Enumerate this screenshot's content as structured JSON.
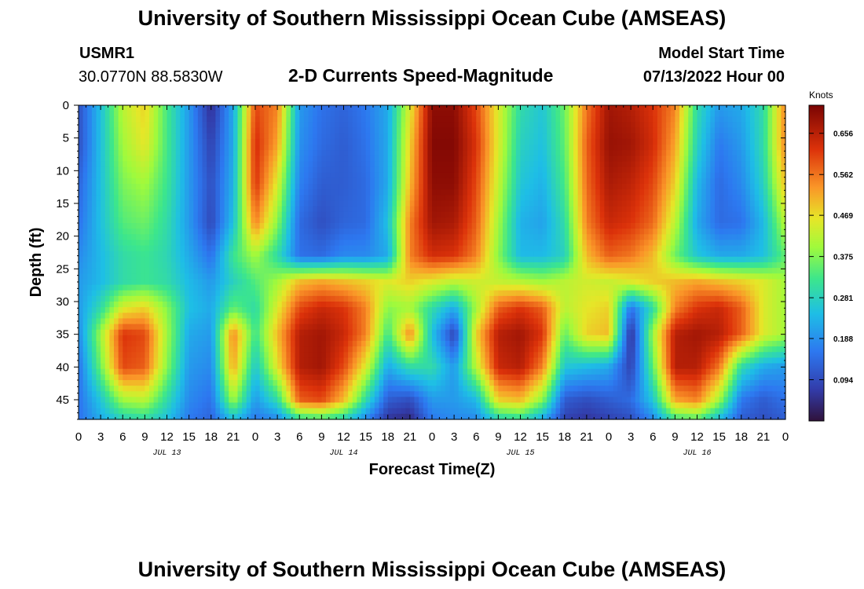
{
  "header": {
    "title": "University of Southern Mississippi Ocean Cube (AMSEAS)",
    "station": "USMR1",
    "coords": "30.0770N  88.5830W",
    "plot_title": "2-D Currents Speed-Magnitude",
    "model_start_label": "Model Start Time",
    "model_start_value": "07/13/2022 Hour 00"
  },
  "footer": {
    "title": "University of Southern Mississippi Ocean Cube (AMSEAS)"
  },
  "chart_data": {
    "type": "heatmap",
    "title": "2-D Currents Speed-Magnitude",
    "xlabel": "Forecast Time(Z)",
    "ylabel": "Depth (ft)",
    "xlim": [
      0,
      96
    ],
    "ylim": [
      48,
      0
    ],
    "x_ticks": [
      {
        "hour": 0,
        "label": "0"
      },
      {
        "hour": 3,
        "label": "3"
      },
      {
        "hour": 6,
        "label": "6"
      },
      {
        "hour": 9,
        "label": "9"
      },
      {
        "hour": 12,
        "label": "12"
      },
      {
        "hour": 15,
        "label": "15"
      },
      {
        "hour": 18,
        "label": "18"
      },
      {
        "hour": 21,
        "label": "21"
      },
      {
        "hour": 24,
        "label": "0"
      },
      {
        "hour": 27,
        "label": "3"
      },
      {
        "hour": 30,
        "label": "6"
      },
      {
        "hour": 33,
        "label": "9"
      },
      {
        "hour": 36,
        "label": "12"
      },
      {
        "hour": 39,
        "label": "15"
      },
      {
        "hour": 42,
        "label": "18"
      },
      {
        "hour": 45,
        "label": "21"
      },
      {
        "hour": 48,
        "label": "0"
      },
      {
        "hour": 51,
        "label": "3"
      },
      {
        "hour": 54,
        "label": "6"
      },
      {
        "hour": 57,
        "label": "9"
      },
      {
        "hour": 60,
        "label": "12"
      },
      {
        "hour": 63,
        "label": "15"
      },
      {
        "hour": 66,
        "label": "18"
      },
      {
        "hour": 69,
        "label": "21"
      },
      {
        "hour": 72,
        "label": "0"
      },
      {
        "hour": 75,
        "label": "3"
      },
      {
        "hour": 78,
        "label": "6"
      },
      {
        "hour": 81,
        "label": "9"
      },
      {
        "hour": 84,
        "label": "12"
      },
      {
        "hour": 87,
        "label": "15"
      },
      {
        "hour": 90,
        "label": "18"
      },
      {
        "hour": 93,
        "label": "21"
      },
      {
        "hour": 96,
        "label": "0"
      }
    ],
    "date_labels": [
      {
        "hour": 12,
        "label": "JUL 13"
      },
      {
        "hour": 36,
        "label": "JUL 14"
      },
      {
        "hour": 60,
        "label": "JUL 15"
      },
      {
        "hour": 84,
        "label": "JUL 16"
      }
    ],
    "y_ticks": [
      0,
      5,
      10,
      15,
      20,
      25,
      30,
      35,
      40,
      45
    ],
    "colorbar": {
      "label": "Knots",
      "min": 0,
      "max": 0.72,
      "ticks": [
        "0.656",
        "0.562",
        "0.469",
        "0.375",
        "0.281",
        "0.188",
        "0.094"
      ]
    },
    "depths_ft": [
      0,
      6,
      12,
      18,
      23,
      27,
      31,
      35,
      40,
      45,
      48
    ],
    "time_hours": [
      0,
      3,
      6,
      9,
      12,
      15,
      18,
      21,
      24,
      27,
      30,
      33,
      36,
      39,
      42,
      45,
      48,
      51,
      54,
      57,
      60,
      63,
      66,
      69,
      72,
      75,
      78,
      81,
      84,
      87,
      90,
      93,
      96
    ],
    "speed_knots": [
      [
        0.1,
        0.25,
        0.42,
        0.48,
        0.33,
        0.2,
        0.05,
        0.22,
        0.6,
        0.55,
        0.2,
        0.15,
        0.13,
        0.16,
        0.22,
        0.45,
        0.7,
        0.7,
        0.6,
        0.45,
        0.3,
        0.26,
        0.36,
        0.56,
        0.68,
        0.66,
        0.62,
        0.55,
        0.3,
        0.2,
        0.22,
        0.3,
        0.55
      ],
      [
        0.1,
        0.25,
        0.4,
        0.46,
        0.33,
        0.2,
        0.08,
        0.22,
        0.63,
        0.52,
        0.19,
        0.14,
        0.12,
        0.15,
        0.22,
        0.48,
        0.71,
        0.71,
        0.62,
        0.45,
        0.28,
        0.25,
        0.35,
        0.58,
        0.69,
        0.68,
        0.63,
        0.52,
        0.28,
        0.16,
        0.2,
        0.3,
        0.55
      ],
      [
        0.13,
        0.25,
        0.37,
        0.4,
        0.32,
        0.2,
        0.1,
        0.23,
        0.62,
        0.45,
        0.17,
        0.12,
        0.12,
        0.14,
        0.22,
        0.5,
        0.7,
        0.7,
        0.6,
        0.43,
        0.26,
        0.23,
        0.33,
        0.57,
        0.67,
        0.65,
        0.6,
        0.48,
        0.24,
        0.14,
        0.18,
        0.28,
        0.5
      ],
      [
        0.15,
        0.25,
        0.34,
        0.36,
        0.3,
        0.2,
        0.09,
        0.25,
        0.55,
        0.38,
        0.14,
        0.1,
        0.13,
        0.14,
        0.25,
        0.55,
        0.68,
        0.67,
        0.58,
        0.4,
        0.23,
        0.21,
        0.3,
        0.55,
        0.64,
        0.62,
        0.57,
        0.42,
        0.22,
        0.14,
        0.15,
        0.24,
        0.42
      ],
      [
        0.18,
        0.24,
        0.3,
        0.32,
        0.29,
        0.22,
        0.15,
        0.32,
        0.4,
        0.3,
        0.15,
        0.14,
        0.18,
        0.18,
        0.22,
        0.55,
        0.63,
        0.62,
        0.55,
        0.38,
        0.24,
        0.24,
        0.28,
        0.5,
        0.58,
        0.56,
        0.5,
        0.36,
        0.26,
        0.22,
        0.22,
        0.25,
        0.35
      ],
      [
        0.2,
        0.24,
        0.3,
        0.32,
        0.3,
        0.24,
        0.2,
        0.28,
        0.34,
        0.4,
        0.5,
        0.52,
        0.5,
        0.48,
        0.45,
        0.48,
        0.45,
        0.42,
        0.44,
        0.43,
        0.42,
        0.4,
        0.42,
        0.44,
        0.43,
        0.45,
        0.48,
        0.5,
        0.52,
        0.5,
        0.48,
        0.45,
        0.4
      ],
      [
        0.2,
        0.3,
        0.45,
        0.48,
        0.38,
        0.25,
        0.22,
        0.35,
        0.3,
        0.45,
        0.6,
        0.64,
        0.62,
        0.55,
        0.38,
        0.4,
        0.3,
        0.22,
        0.4,
        0.58,
        0.62,
        0.58,
        0.42,
        0.46,
        0.48,
        0.15,
        0.3,
        0.55,
        0.62,
        0.64,
        0.58,
        0.45,
        0.4
      ],
      [
        0.18,
        0.4,
        0.62,
        0.6,
        0.4,
        0.22,
        0.2,
        0.55,
        0.32,
        0.5,
        0.66,
        0.68,
        0.64,
        0.55,
        0.32,
        0.55,
        0.25,
        0.08,
        0.48,
        0.66,
        0.68,
        0.62,
        0.35,
        0.48,
        0.5,
        0.05,
        0.4,
        0.66,
        0.68,
        0.66,
        0.58,
        0.45,
        0.4
      ],
      [
        0.15,
        0.36,
        0.6,
        0.58,
        0.38,
        0.2,
        0.18,
        0.52,
        0.26,
        0.46,
        0.66,
        0.68,
        0.6,
        0.45,
        0.22,
        0.3,
        0.3,
        0.2,
        0.42,
        0.64,
        0.66,
        0.55,
        0.26,
        0.24,
        0.22,
        0.08,
        0.35,
        0.66,
        0.66,
        0.56,
        0.3,
        0.22,
        0.2
      ],
      [
        0.15,
        0.26,
        0.4,
        0.42,
        0.3,
        0.18,
        0.15,
        0.4,
        0.2,
        0.3,
        0.58,
        0.6,
        0.5,
        0.3,
        0.12,
        0.1,
        0.2,
        0.2,
        0.24,
        0.48,
        0.5,
        0.38,
        0.12,
        0.1,
        0.12,
        0.14,
        0.26,
        0.52,
        0.55,
        0.4,
        0.16,
        0.12,
        0.15
      ],
      [
        0.15,
        0.22,
        0.28,
        0.3,
        0.25,
        0.16,
        0.13,
        0.25,
        0.16,
        0.18,
        0.3,
        0.32,
        0.28,
        0.18,
        0.06,
        0.04,
        0.16,
        0.18,
        0.18,
        0.28,
        0.3,
        0.22,
        0.08,
        0.06,
        0.08,
        0.1,
        0.18,
        0.32,
        0.34,
        0.24,
        0.12,
        0.1,
        0.12
      ]
    ]
  }
}
